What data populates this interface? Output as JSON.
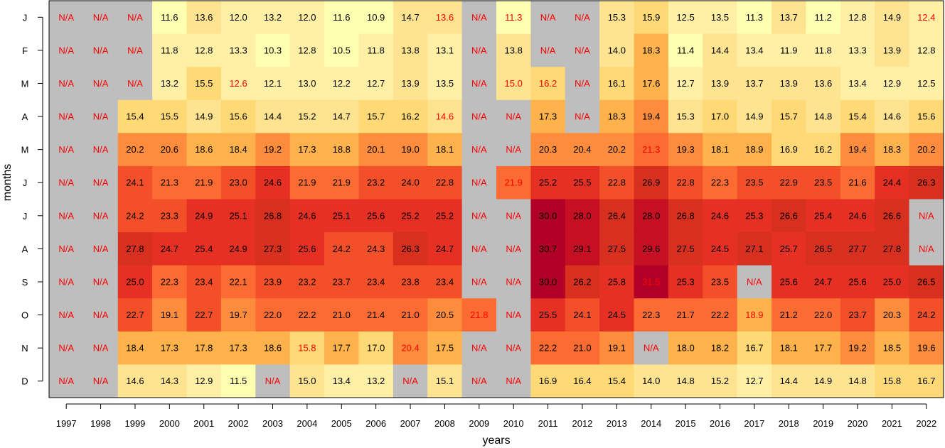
{
  "chart_data": {
    "type": "heatmap",
    "title": "",
    "xlabel": "years",
    "ylabel": "months",
    "missing_label": "N/A",
    "x": [
      "1997",
      "1998",
      "1999",
      "2000",
      "2001",
      "2002",
      "2003",
      "2004",
      "2005",
      "2006",
      "2007",
      "2008",
      "2009",
      "2010",
      "2011",
      "2012",
      "2013",
      "2014",
      "2015",
      "2016",
      "2017",
      "2018",
      "2019",
      "2020",
      "2021",
      "2022"
    ],
    "y": [
      "J",
      "F",
      "M",
      "A",
      "M",
      "J",
      "J",
      "A",
      "S",
      "O",
      "N",
      "D"
    ],
    "values": [
      [
        null,
        null,
        null,
        11.6,
        13.6,
        12.0,
        13.2,
        12.0,
        11.6,
        10.9,
        14.7,
        13.6,
        null,
        11.3,
        null,
        null,
        15.3,
        15.9,
        12.5,
        13.5,
        11.3,
        13.7,
        11.2,
        12.8,
        14.9,
        12.4
      ],
      [
        null,
        null,
        null,
        11.8,
        12.8,
        13.3,
        10.3,
        12.8,
        10.5,
        11.8,
        13.8,
        13.1,
        null,
        13.8,
        null,
        null,
        14.0,
        18.3,
        11.4,
        14.4,
        13.4,
        11.9,
        11.8,
        13.3,
        13.9,
        12.8
      ],
      [
        null,
        null,
        null,
        13.2,
        15.5,
        12.6,
        12.1,
        13.0,
        12.2,
        12.7,
        13.9,
        13.5,
        null,
        15.0,
        16.2,
        null,
        16.1,
        17.6,
        12.7,
        13.9,
        13.7,
        13.9,
        13.6,
        13.4,
        12.9,
        12.5
      ],
      [
        null,
        null,
        15.4,
        15.5,
        14.9,
        15.6,
        14.4,
        15.2,
        14.7,
        15.7,
        16.2,
        14.6,
        null,
        null,
        17.3,
        null,
        18.3,
        19.4,
        15.3,
        17.0,
        14.9,
        15.7,
        14.8,
        15.4,
        14.6,
        15.6
      ],
      [
        null,
        null,
        20.2,
        20.6,
        18.6,
        18.4,
        19.2,
        17.3,
        18.8,
        20.1,
        19.0,
        18.1,
        null,
        null,
        20.3,
        20.4,
        20.2,
        21.3,
        19.3,
        18.1,
        18.9,
        16.9,
        16.2,
        19.4,
        18.3,
        20.2
      ],
      [
        null,
        null,
        24.1,
        21.3,
        21.9,
        23.0,
        24.6,
        21.9,
        21.9,
        23.2,
        24.0,
        22.8,
        null,
        21.9,
        25.2,
        25.5,
        22.8,
        26.9,
        22.8,
        22.3,
        23.5,
        22.9,
        23.5,
        21.6,
        24.4,
        26.3
      ],
      [
        null,
        null,
        24.2,
        23.3,
        24.9,
        25.1,
        26.8,
        24.6,
        25.1,
        25.6,
        25.2,
        25.2,
        null,
        null,
        30.0,
        28.0,
        26.4,
        28.0,
        26.8,
        24.6,
        25.3,
        26.6,
        25.4,
        24.6,
        26.6,
        null
      ],
      [
        null,
        null,
        27.8,
        24.7,
        25.4,
        24.9,
        27.3,
        25.6,
        24.2,
        24.3,
        26.3,
        24.7,
        null,
        null,
        30.7,
        29.1,
        27.5,
        29.6,
        27.5,
        24.5,
        27.1,
        25.7,
        26.5,
        27.7,
        27.8,
        null
      ],
      [
        null,
        null,
        25.0,
        22.3,
        23.4,
        22.1,
        23.9,
        23.2,
        23.7,
        23.4,
        23.8,
        23.4,
        null,
        null,
        30.0,
        26.2,
        25.8,
        31.5,
        25.3,
        23.5,
        null,
        25.6,
        24.7,
        25.6,
        25.0,
        26.5
      ],
      [
        null,
        null,
        22.7,
        19.1,
        22.7,
        19.7,
        22.0,
        22.2,
        21.0,
        21.4,
        21.0,
        20.5,
        21.8,
        null,
        25.5,
        24.1,
        24.5,
        22.3,
        21.7,
        22.2,
        18.9,
        21.2,
        22.0,
        23.7,
        20.3,
        24.2
      ],
      [
        null,
        null,
        18.4,
        17.3,
        17.8,
        17.3,
        18.6,
        15.8,
        17.7,
        17.0,
        20.4,
        17.5,
        null,
        null,
        22.2,
        21.0,
        19.1,
        null,
        18.0,
        18.2,
        16.7,
        18.1,
        17.7,
        19.2,
        18.5,
        19.6
      ],
      [
        null,
        null,
        14.6,
        14.3,
        12.9,
        11.5,
        null,
        15.0,
        13.4,
        13.2,
        null,
        15.1,
        null,
        null,
        16.9,
        16.4,
        15.4,
        14.0,
        14.8,
        15.2,
        12.7,
        14.4,
        14.9,
        14.8,
        15.8,
        16.7
      ]
    ],
    "label_colors": {
      "normal": "#000000",
      "highlight": "#ff0000"
    },
    "highlighted_cells": [
      [
        0,
        11
      ],
      [
        0,
        13
      ],
      [
        0,
        25
      ],
      [
        2,
        5
      ],
      [
        2,
        13
      ],
      [
        2,
        14
      ],
      [
        3,
        11
      ],
      [
        4,
        17
      ],
      [
        5,
        13
      ],
      [
        9,
        12
      ],
      [
        9,
        20
      ],
      [
        10,
        7
      ],
      [
        10,
        10
      ],
      [
        8,
        17
      ]
    ],
    "colors": {
      "missing": "#bebebe",
      "scale": [
        "#ffffb2",
        "#fff0a6",
        "#fee391",
        "#fed976",
        "#feb24c",
        "#fd8d3c",
        "#fc6c32",
        "#f3502a",
        "#e63024",
        "#d7301f",
        "#c60f23",
        "#b10026"
      ],
      "scale_min": 10.0,
      "scale_max": 31.5
    }
  }
}
